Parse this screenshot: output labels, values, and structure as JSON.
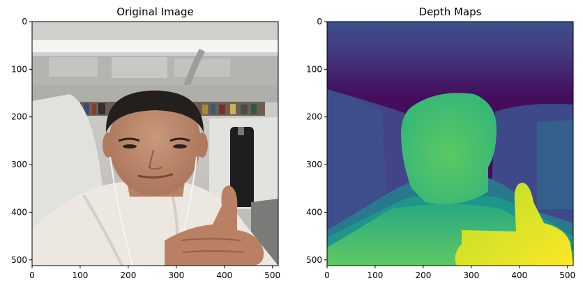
{
  "panels": [
    {
      "title": "Original Image",
      "x_ticks": [
        "0",
        "100",
        "200",
        "300",
        "400",
        "500"
      ],
      "y_ticks": [
        "0",
        "100",
        "200",
        "300",
        "400",
        "500"
      ],
      "x_range": [
        0,
        512
      ],
      "y_range": [
        0,
        512
      ],
      "x_tick_values": [
        0,
        100,
        200,
        300,
        400,
        500
      ],
      "y_tick_values": [
        0,
        100,
        200,
        300,
        400,
        500
      ]
    },
    {
      "title": "Depth Maps",
      "x_ticks": [
        "0",
        "100",
        "200",
        "300",
        "400",
        "500"
      ],
      "y_ticks": [
        "0",
        "100",
        "200",
        "300",
        "400",
        "500"
      ],
      "x_range": [
        0,
        512
      ],
      "y_range": [
        0,
        512
      ],
      "x_tick_values": [
        0,
        100,
        200,
        300,
        400,
        500
      ],
      "y_tick_values": [
        0,
        100,
        200,
        300,
        400,
        500
      ],
      "colormap": [
        "#440154",
        "#3b528b",
        "#21918c",
        "#5ec962",
        "#fde725"
      ]
    }
  ]
}
